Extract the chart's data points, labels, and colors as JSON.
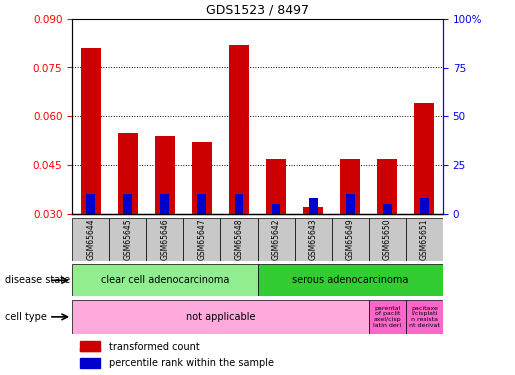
{
  "title": "GDS1523 / 8497",
  "samples": [
    "GSM65644",
    "GSM65645",
    "GSM65646",
    "GSM65647",
    "GSM65648",
    "GSM65642",
    "GSM65643",
    "GSM65649",
    "GSM65650",
    "GSM65651"
  ],
  "transformed_count": [
    0.081,
    0.055,
    0.054,
    0.052,
    0.082,
    0.047,
    0.032,
    0.047,
    0.047,
    0.064
  ],
  "percentile_rank": [
    10,
    10,
    10,
    10,
    10,
    5,
    8,
    10,
    5,
    8
  ],
  "baseline": 0.03,
  "ylim_left": [
    0.03,
    0.09
  ],
  "ylim_right": [
    0,
    100
  ],
  "yticks_left": [
    0.03,
    0.045,
    0.06,
    0.075,
    0.09
  ],
  "yticks_right": [
    0,
    25,
    50,
    75,
    100
  ],
  "disease_state_groups": [
    {
      "label": "clear cell adenocarcinoma",
      "start": 0,
      "end": 5,
      "color": "#90EE90"
    },
    {
      "label": "serous adenocarcinoma",
      "start": 5,
      "end": 10,
      "color": "#33CC33"
    }
  ],
  "cell_type_groups": [
    {
      "label": "not applicable",
      "start": 0,
      "end": 8,
      "color": "#FFAADD"
    },
    {
      "label": "parental\nof paclit\naxel/cisp\nlatin deri",
      "start": 8,
      "end": 9,
      "color": "#FF66CC"
    },
    {
      "label": "pacitaxe\nl/cisplati\nn resista\nnt derivat",
      "start": 9,
      "end": 10,
      "color": "#FF66CC"
    }
  ],
  "bar_color_red": "#CC0000",
  "bar_color_blue": "#0000CC",
  "sample_row_color": "#C8C8C8",
  "fig_width": 5.15,
  "fig_height": 3.75,
  "dpi": 100
}
